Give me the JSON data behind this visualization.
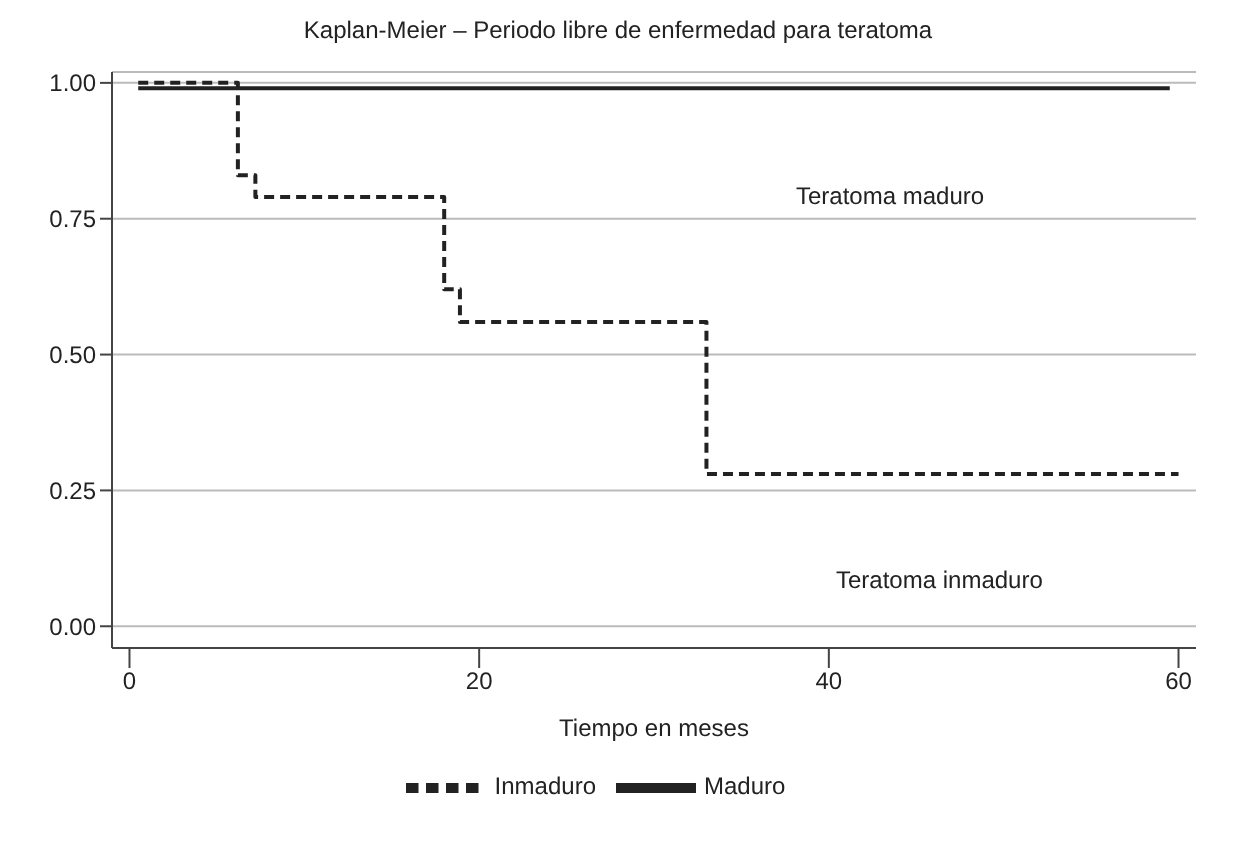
{
  "chart_data": {
    "type": "step",
    "title": "Kaplan-Meier – Periodo libre de enfermedad para teratoma",
    "xlabel": "Tiempo en meses",
    "series": [
      {
        "name": "Inmaduro",
        "color": "#222222",
        "line_style": "dashed",
        "x": [
          0.5,
          6.2,
          7.2,
          18,
          18.9,
          33,
          60
        ],
        "values": [
          1,
          0.83,
          0.79,
          0.62,
          0.56,
          0.28,
          0.28
        ]
      },
      {
        "name": "Maduro",
        "color": "#222222",
        "line_style": "solid",
        "x": [
          0.5,
          59.5
        ],
        "values": [
          0.99,
          0.99
        ]
      }
    ],
    "xlim": [
      -1,
      61
    ],
    "xticks": [
      0,
      20,
      40,
      60
    ],
    "ylim": [
      -0.04,
      1.02
    ],
    "yticks": [
      {
        "value": 0,
        "label": "0.00"
      },
      {
        "value": 0.25,
        "label": "0.25"
      },
      {
        "value": 0.5,
        "label": "0.50"
      },
      {
        "value": 0.75,
        "label": "0.75"
      },
      {
        "value": 1,
        "label": "1.00"
      }
    ],
    "grid": "y",
    "legend": "bottom",
    "marker": "none",
    "annotations": [
      "Teratoma maduro",
      "Teratoma inmaduro"
    ]
  }
}
